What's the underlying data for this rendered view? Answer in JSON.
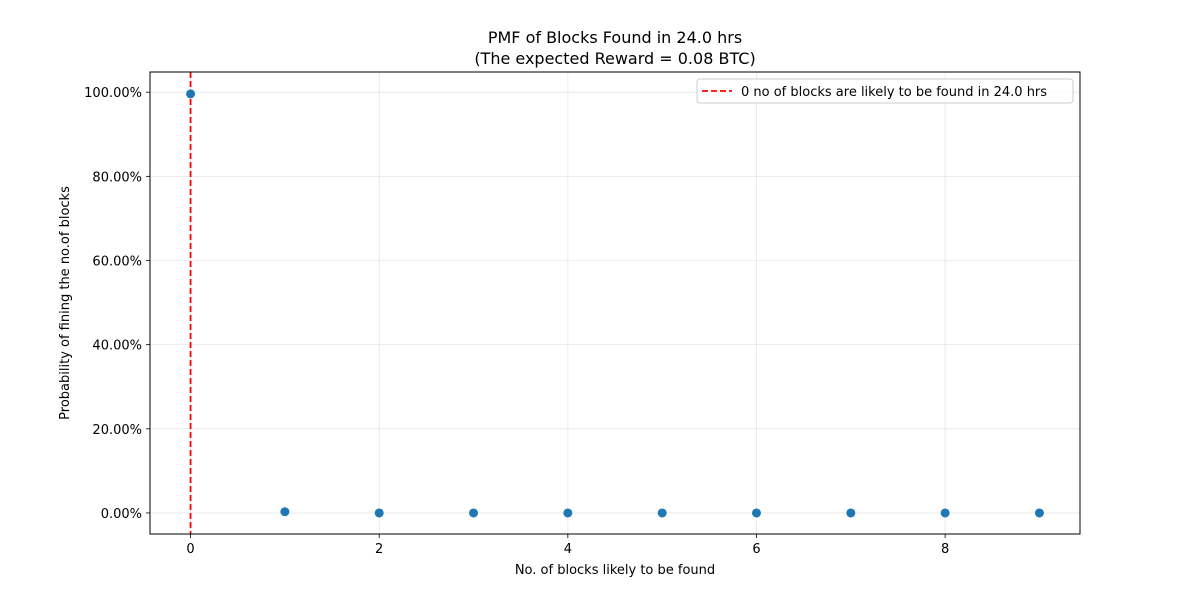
{
  "chart_data": {
    "type": "scatter",
    "title_line1": "PMF of Blocks Found in 24.0 hrs",
    "title_line2": "(The expected Reward = 0.08 BTC)",
    "xlabel": "No. of blocks likely to be found",
    "ylabel": "Probability of fining the no.of blocks",
    "x": [
      0,
      1,
      2,
      3,
      4,
      5,
      6,
      7,
      8,
      9
    ],
    "y": [
      99.6,
      0.3,
      0.0,
      0.0,
      0.0,
      0.0,
      0.0,
      0.0,
      0.0,
      0.0
    ],
    "xlim": [
      -0.43,
      9.43
    ],
    "ylim": [
      -5.0,
      104.8
    ],
    "xticks": [
      0,
      2,
      4,
      6,
      8
    ],
    "xtick_labels": [
      "0",
      "2",
      "4",
      "6",
      "8"
    ],
    "yticks": [
      0,
      20,
      40,
      60,
      80,
      100
    ],
    "ytick_labels": [
      "0.00%",
      "20.00%",
      "40.00%",
      "60.00%",
      "80.00%",
      "100.00%"
    ],
    "grid": true,
    "point_color": "#1f77b4",
    "vline": {
      "x": 0,
      "color": "#ff0000",
      "style": "dashed"
    },
    "legend": {
      "position": "upper right",
      "label": "0 no of blocks are likely to be found in 24.0 hrs"
    }
  }
}
